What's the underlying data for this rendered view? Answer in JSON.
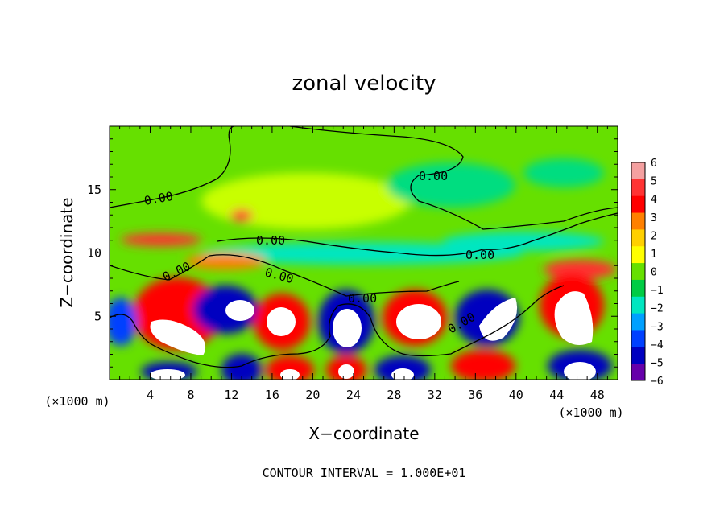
{
  "chart_data": {
    "type": "heatmap",
    "title": "zonal velocity",
    "xlabel": "X−coordinate",
    "ylabel": "Z−coordinate",
    "x_unit": "(×1000 m)",
    "y_unit": "(×1000 m)",
    "xlim": [
      0,
      50
    ],
    "ylim": [
      0,
      20
    ],
    "x_ticks": [
      "4",
      "8",
      "12",
      "16",
      "20",
      "24",
      "28",
      "32",
      "36",
      "40",
      "44",
      "48"
    ],
    "y_ticks": [
      "5",
      "10",
      "15"
    ],
    "colorbar_ticks": [
      "6",
      "5",
      "4",
      "3",
      "2",
      "1",
      "0",
      "−1",
      "−2",
      "−3",
      "−4",
      "−5",
      "−6"
    ],
    "colorbar_colors": [
      "#f4a0a0",
      "#ff3333",
      "#ff0000",
      "#ff8000",
      "#ffd000",
      "#ffff00",
      "#66e000",
      "#00cc44",
      "#00e6c0",
      "#00a0ff",
      "#0040ff",
      "#0000c0",
      "#6600aa"
    ],
    "contour_label": "0.00",
    "contour_interval_text": "CONTOUR INTERVAL = 1.000E+01",
    "grid": false,
    "legend": "right"
  }
}
